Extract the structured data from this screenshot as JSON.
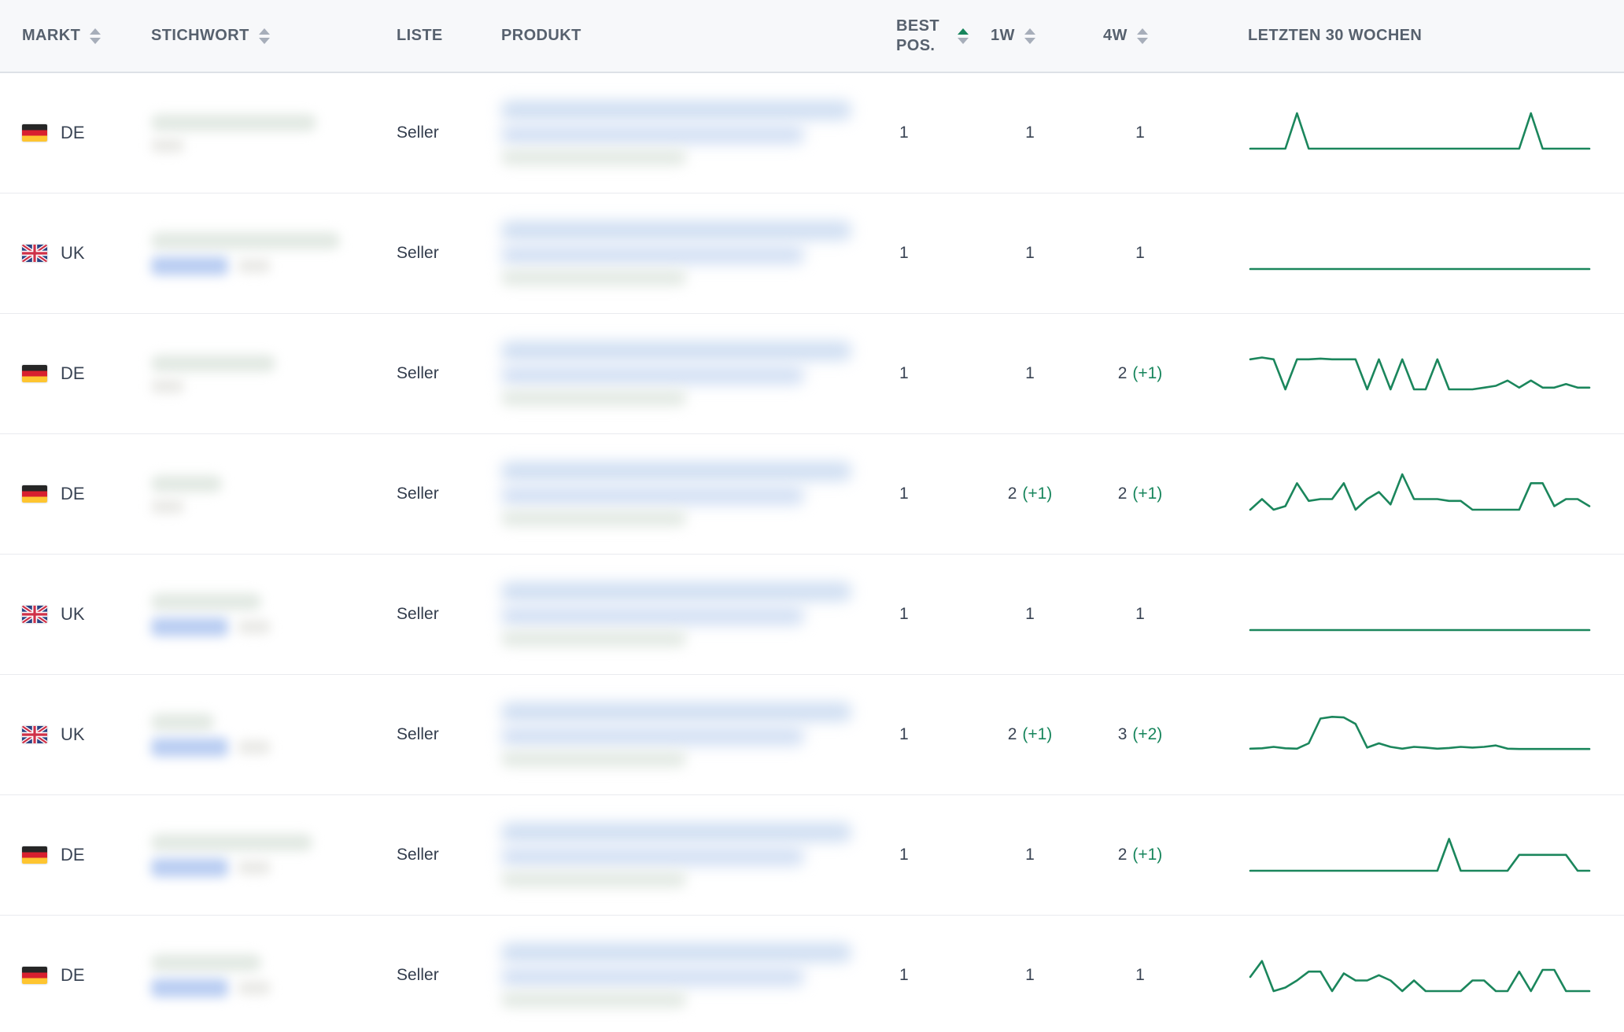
{
  "colors": {
    "accent_green": "#17855c",
    "sparkline": "#1b865c",
    "header_text": "#57616e",
    "value_text": "#3a4454",
    "header_bg": "#f7f8fa",
    "header_border": "#dde1e7",
    "row_border": "#e9ebef",
    "flag_de": [
      "#262626",
      "#d8202f",
      "#fec530"
    ],
    "flag_uk": [
      "#2c4384",
      "#cf3148",
      "#ffffff"
    ]
  },
  "header": {
    "columns": [
      {
        "id": "markt",
        "label": "MARKT",
        "sortable": true,
        "sort": null
      },
      {
        "id": "stichwort",
        "label": "STICHWORT",
        "sortable": true,
        "sort": null
      },
      {
        "id": "liste",
        "label": "LISTE",
        "sortable": false,
        "sort": null
      },
      {
        "id": "produkt",
        "label": "PRODUKT",
        "sortable": false,
        "sort": null
      },
      {
        "id": "best_pos",
        "label": "BEST POS.",
        "sortable": true,
        "sort": "asc"
      },
      {
        "id": "1w",
        "label": "1W",
        "sortable": true,
        "sort": null
      },
      {
        "id": "4w",
        "label": "4W",
        "sortable": true,
        "sort": null
      },
      {
        "id": "trend",
        "label": "LETZTEN 30 WOCHEN",
        "sortable": false,
        "sort": null
      }
    ]
  },
  "rows": [
    {
      "market": "DE",
      "list": "Seller",
      "best_pos": "1",
      "one_week": {
        "value": "1",
        "delta": ""
      },
      "four_week": {
        "value": "1",
        "delta": ""
      },
      "keyword_badge": false,
      "keyword_blur_width": 210,
      "trend": [
        0,
        0,
        0,
        0,
        1,
        0,
        0,
        0,
        0,
        0,
        0,
        0,
        0,
        0,
        0,
        0,
        0,
        0,
        0,
        0,
        0,
        0,
        0,
        0,
        1,
        0,
        0,
        0,
        0,
        0
      ]
    },
    {
      "market": "UK",
      "list": "Seller",
      "best_pos": "1",
      "one_week": {
        "value": "1",
        "delta": ""
      },
      "four_week": {
        "value": "1",
        "delta": ""
      },
      "keyword_badge": true,
      "keyword_blur_width": 240,
      "trend": [
        0,
        0,
        0,
        0,
        0,
        0,
        0,
        0,
        0,
        0,
        0,
        0,
        0,
        0,
        0,
        0,
        0,
        0,
        0,
        0,
        0,
        0,
        0,
        0,
        0,
        0,
        0,
        0,
        0,
        0
      ]
    },
    {
      "market": "DE",
      "list": "Seller",
      "best_pos": "1",
      "one_week": {
        "value": "1",
        "delta": ""
      },
      "four_week": {
        "value": "2",
        "delta": "(+1)"
      },
      "keyword_badge": false,
      "keyword_blur_width": 158,
      "trend": [
        0.85,
        0.9,
        0.85,
        0,
        0.85,
        0.85,
        0.87,
        0.85,
        0.85,
        0.85,
        0,
        0.85,
        0,
        0.85,
        0,
        0,
        0.85,
        0,
        0,
        0,
        0.05,
        0.1,
        0.25,
        0.05,
        0.25,
        0.05,
        0.05,
        0.15,
        0.05,
        0.05
      ]
    },
    {
      "market": "DE",
      "list": "Seller",
      "best_pos": "1",
      "one_week": {
        "value": "2",
        "delta": "(+1)"
      },
      "four_week": {
        "value": "2",
        "delta": "(+1)"
      },
      "keyword_badge": false,
      "keyword_blur_width": 90,
      "trend": [
        0,
        0.3,
        0,
        0.1,
        0.75,
        0.25,
        0.3,
        0.3,
        0.75,
        0,
        0.3,
        0.5,
        0.15,
        1.0,
        0.3,
        0.3,
        0.3,
        0.25,
        0.25,
        0,
        0,
        0,
        0,
        0,
        0.75,
        0.75,
        0.1,
        0.3,
        0.3,
        0.1
      ]
    },
    {
      "market": "UK",
      "list": "Seller",
      "best_pos": "1",
      "one_week": {
        "value": "1",
        "delta": ""
      },
      "four_week": {
        "value": "1",
        "delta": ""
      },
      "keyword_badge": true,
      "keyword_blur_width": 140,
      "trend": [
        0,
        0,
        0,
        0,
        0,
        0,
        0,
        0,
        0,
        0,
        0,
        0,
        0,
        0,
        0,
        0,
        0,
        0,
        0,
        0,
        0,
        0,
        0,
        0,
        0,
        0,
        0,
        0,
        0,
        0
      ]
    },
    {
      "market": "UK",
      "list": "Seller",
      "best_pos": "1",
      "one_week": {
        "value": "2",
        "delta": "(+1)"
      },
      "four_week": {
        "value": "3",
        "delta": "(+2)"
      },
      "keyword_badge": true,
      "keyword_blur_width": 80,
      "trend": [
        0.05,
        0.06,
        0.1,
        0.06,
        0.05,
        0.2,
        0.9,
        0.95,
        0.93,
        0.75,
        0.08,
        0.2,
        0.1,
        0.05,
        0.1,
        0.08,
        0.05,
        0.07,
        0.1,
        0.08,
        0.1,
        0.14,
        0.05,
        0.04,
        0.04,
        0.04,
        0.04,
        0.04,
        0.04,
        0.04
      ]
    },
    {
      "market": "DE",
      "list": "Seller",
      "best_pos": "1",
      "one_week": {
        "value": "1",
        "delta": ""
      },
      "four_week": {
        "value": "2",
        "delta": "(+1)"
      },
      "keyword_badge": true,
      "keyword_blur_width": 205,
      "trend": [
        0,
        0,
        0,
        0,
        0,
        0,
        0,
        0,
        0,
        0,
        0,
        0,
        0,
        0,
        0,
        0,
        0,
        0.9,
        0,
        0,
        0,
        0,
        0,
        0.45,
        0.45,
        0.45,
        0.45,
        0.45,
        0,
        0
      ]
    },
    {
      "market": "DE",
      "list": "Seller",
      "best_pos": "1",
      "one_week": {
        "value": "1",
        "delta": ""
      },
      "four_week": {
        "value": "1",
        "delta": ""
      },
      "keyword_badge": true,
      "keyword_blur_width": 140,
      "trend": [
        0.4,
        0.85,
        0,
        0.1,
        0.3,
        0.55,
        0.55,
        0,
        0.5,
        0.3,
        0.3,
        0.45,
        0.3,
        0,
        0.3,
        0,
        0,
        0,
        0,
        0.3,
        0.3,
        0,
        0,
        0.55,
        0,
        0.6,
        0.6,
        0,
        0,
        0
      ]
    }
  ]
}
